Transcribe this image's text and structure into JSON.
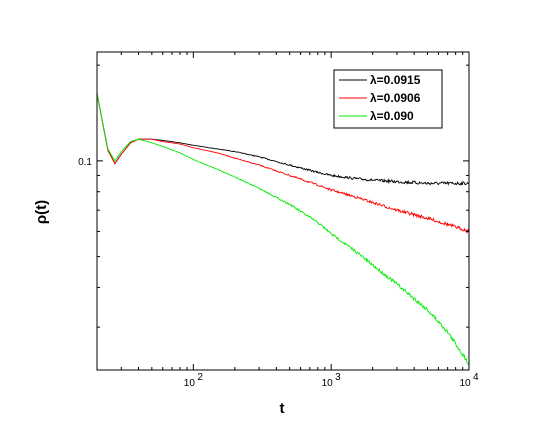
{
  "chart_data": {
    "type": "line",
    "xlabel": "t",
    "ylabel": "ρ(t)",
    "x_scale": "log",
    "y_scale": "log",
    "xlim": [
      20,
      10000
    ],
    "ylim": [
      0.022,
      0.22
    ],
    "y_tick_labels": [
      {
        "value": 0.1,
        "label": "0.1"
      }
    ],
    "x_tick_labels": [
      {
        "value": 100,
        "base": "10",
        "exp": "2"
      },
      {
        "value": 1000,
        "base": "10",
        "exp": "3"
      },
      {
        "value": 10000,
        "base": "10",
        "exp": "4"
      }
    ],
    "grid": false,
    "legend_position": "top-right",
    "series": [
      {
        "name": "λ=0.0915",
        "color": "#000000",
        "x": [
          20,
          24,
          27,
          30,
          35,
          40,
          50,
          60,
          80,
          100,
          150,
          200,
          300,
          500,
          800,
          1000,
          1500,
          2000,
          3000,
          5000,
          8000,
          10000
        ],
        "y": [
          0.163,
          0.108,
          0.098,
          0.105,
          0.114,
          0.117,
          0.117,
          0.116,
          0.114,
          0.112,
          0.109,
          0.107,
          0.103,
          0.097,
          0.092,
          0.09,
          0.088,
          0.087,
          0.086,
          0.085,
          0.085,
          0.085
        ]
      },
      {
        "name": "λ=0.0906",
        "color": "#ff0000",
        "x": [
          20,
          24,
          27,
          30,
          35,
          40,
          50,
          60,
          80,
          100,
          150,
          200,
          300,
          500,
          800,
          1000,
          1500,
          2000,
          3000,
          5000,
          8000,
          10000
        ],
        "y": [
          0.163,
          0.108,
          0.098,
          0.105,
          0.114,
          0.117,
          0.117,
          0.115,
          0.113,
          0.11,
          0.106,
          0.102,
          0.097,
          0.09,
          0.084,
          0.081,
          0.077,
          0.074,
          0.07,
          0.066,
          0.062,
          0.06
        ]
      },
      {
        "name": "λ=0.090",
        "color": "#00ee00",
        "x": [
          20,
          24,
          27,
          30,
          35,
          40,
          50,
          60,
          80,
          100,
          150,
          200,
          300,
          500,
          800,
          1000,
          1500,
          2000,
          3000,
          5000,
          7000,
          10000
        ],
        "y": [
          0.163,
          0.109,
          0.1,
          0.107,
          0.115,
          0.117,
          0.114,
          0.111,
          0.106,
          0.101,
          0.094,
          0.089,
          0.082,
          0.073,
          0.064,
          0.059,
          0.052,
          0.047,
          0.041,
          0.034,
          0.029,
          0.023
        ]
      }
    ]
  }
}
